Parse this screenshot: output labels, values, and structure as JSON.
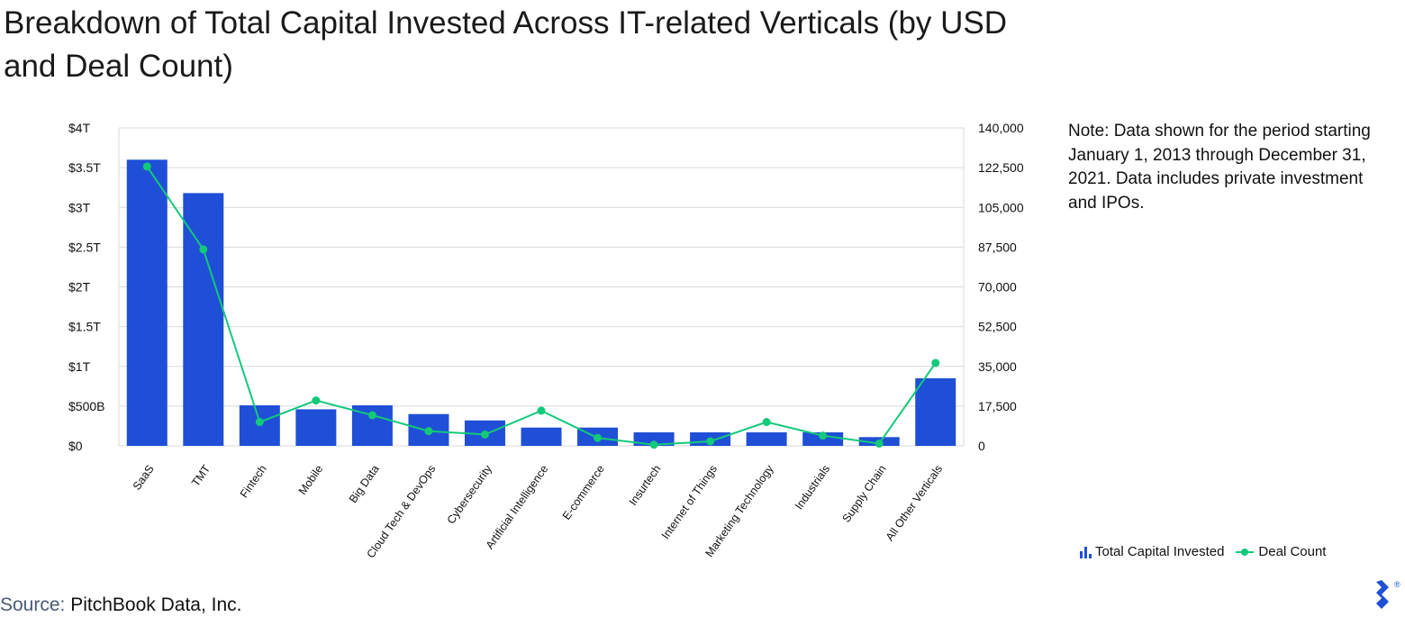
{
  "title": "Breakdown of Total Capital Invested Across IT-related Verticals (by USD and Deal Count)",
  "note": "Note: Data shown for the period starting January 1, 2013 through December 31, 2021. Data includes private investment and IPOs.",
  "source": {
    "label": "Source:",
    "text": "PitchBook Data, Inc."
  },
  "legend": {
    "bar_label": "Total Capital Invested",
    "line_label": "Deal Count"
  },
  "colors": {
    "bar": "#1f4fd6",
    "line": "#13c97a",
    "grid": "#d9d9d9",
    "logo": "#1f4fd6"
  },
  "icons": {
    "bar_legend": "bar-chart-icon",
    "line_legend": "line-marker-icon",
    "logo": "toptal-logo-icon"
  },
  "chart_data": {
    "type": "bar",
    "categories": [
      "SaaS",
      "TMT",
      "Fintech",
      "Mobile",
      "Big Data",
      "Cloud Tech & DevOps",
      "Cybersecurity",
      "Artificial Intelligence",
      "E-commerce",
      "Insurtech",
      "Internet of Things",
      "Marketing Technology",
      "Industrials",
      "Supply Chain",
      "All Other Verticals"
    ],
    "series": [
      {
        "name": "Total Capital Invested",
        "axis": "left",
        "type": "bar",
        "values": [
          3.6,
          3.18,
          0.51,
          0.46,
          0.51,
          0.4,
          0.32,
          0.23,
          0.23,
          0.17,
          0.17,
          0.17,
          0.17,
          0.11,
          0.85
        ]
      },
      {
        "name": "Deal Count",
        "axis": "right",
        "type": "line",
        "values": [
          123000,
          86500,
          10500,
          20000,
          13500,
          6500,
          5000,
          15500,
          3500,
          500,
          2000,
          10500,
          4500,
          1000,
          36500
        ]
      }
    ],
    "y_left": {
      "ticks": [
        "$0",
        "$500B",
        "$1T",
        "$1.5T",
        "$2T",
        "$2.5T",
        "$3T",
        "$3.5T",
        "$4T"
      ],
      "range": [
        0,
        4
      ]
    },
    "y_right": {
      "ticks": [
        "0",
        "17,500",
        "35,000",
        "52,500",
        "70,000",
        "87,500",
        "105,000",
        "122,500",
        "140,000"
      ],
      "range": [
        0,
        140000
      ]
    },
    "grid": true,
    "legend_position": "bottom-right"
  }
}
